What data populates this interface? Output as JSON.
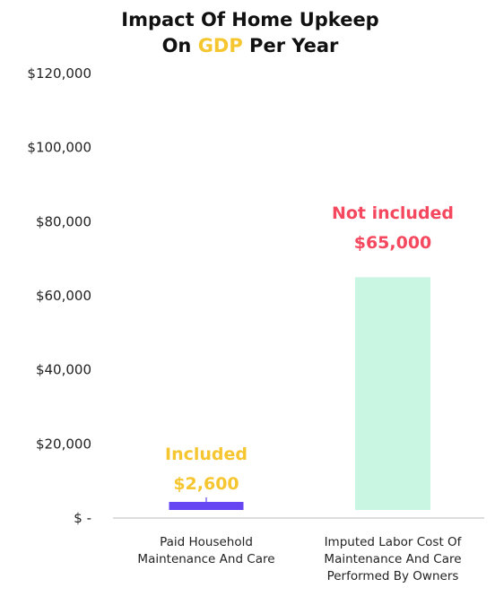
{
  "chart_data": {
    "type": "bar",
    "title_parts": [
      "Impact Of Home Upkeep",
      "On ",
      "GDP",
      " Per Year"
    ],
    "xlabel": "",
    "ylabel": "",
    "ylim": [
      0,
      120000
    ],
    "grid": false,
    "legend": "none",
    "y_ticks": [
      0,
      20000,
      40000,
      60000,
      80000,
      100000,
      120000
    ],
    "y_tick_labels": [
      "$ -",
      "$20,000",
      "$40,000",
      "$60,000",
      "$80,000",
      "$100,000",
      "$120,000"
    ],
    "categories": [
      [
        "Paid Household",
        "Maintenance And Care"
      ],
      [
        "Imputed Labor Cost Of",
        "Maintenance And Care",
        "Performed By Owners"
      ]
    ],
    "values": [
      2600,
      65000
    ],
    "annotations": [
      {
        "status": "Included",
        "value_label": "$2,600"
      },
      {
        "status": "Not included",
        "value_label": "$65,000"
      }
    ],
    "colors": {
      "bars": [
        "#6546f2",
        "#c9f6e3"
      ],
      "annotations": [
        "#f6c631",
        "#f5485f"
      ],
      "title_highlight": "#f6c631",
      "text": "#111111",
      "axis": "#bbbbbb",
      "connector": "#6546f2"
    }
  }
}
